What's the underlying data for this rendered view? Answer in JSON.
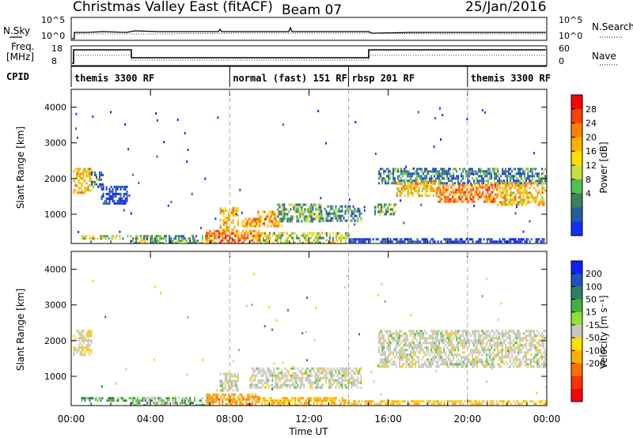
{
  "header": {
    "station": "Christmas Valley East (fitACF)",
    "beam": "Beam 07",
    "date": "25/Jan/2016"
  },
  "left_labels": {
    "nsky": "N.Sky",
    "freq_line1": "Freq.",
    "freq_line2": "[MHz]",
    "cpid": "CPID"
  },
  "right_labels": {
    "nsearch": "N.Search",
    "nave": "Nave"
  },
  "noise_panel": {
    "left_ticks": [
      "10^5",
      "10^0"
    ],
    "right_ticks": [
      "10^5",
      "10^0"
    ]
  },
  "freq_panel": {
    "left_ticks": [
      "18",
      "8"
    ],
    "right_ticks": [
      "60",
      "0"
    ]
  },
  "cpid_segments": [
    {
      "label": "themis 3300 RF",
      "start_hour": 0
    },
    {
      "label": "normal (fast) 151 RF",
      "start_hour": 8
    },
    {
      "label": "rbsp 201 RF",
      "start_hour": 14
    },
    {
      "label": "themis 3300 RF",
      "start_hour": 20
    }
  ],
  "colorbars": {
    "power": {
      "label": "Power [dB]",
      "ticks": [
        "28",
        "24",
        "20",
        "16",
        "12",
        "8",
        "4"
      ],
      "colors": [
        "#ff0000",
        "#ff4000",
        "#ff8000",
        "#ffb000",
        "#ffe000",
        "#c8e040",
        "#50c050",
        "#408060",
        "#2060a0",
        "#1030ff"
      ]
    },
    "velocity": {
      "label": "Velocity [m s⁻¹]",
      "ticks": [
        "200",
        "100",
        "50",
        "15",
        "-15",
        "-50",
        "-100",
        "-200"
      ],
      "colors": [
        "#1020ff",
        "#2050c0",
        "#308060",
        "#40b040",
        "#90e030",
        "#c8c8c0",
        "#ffe000",
        "#ffb000",
        "#ff7000",
        "#ff3000",
        "#ff0000"
      ]
    }
  },
  "chart_data": {
    "type": "heatmap",
    "xlabel": "Time UT",
    "ylabel": "Slant Range [km]",
    "x_tick_labels": [
      "00:00",
      "04:00",
      "08:00",
      "12:00",
      "16:00",
      "20:00",
      "00:00"
    ],
    "x_ticks_hours": [
      0,
      4,
      8,
      12,
      16,
      20,
      24
    ],
    "xlim_hours": [
      0,
      24
    ],
    "ylim_km": [
      180,
      4500
    ],
    "y_ticks": [
      1000,
      2000,
      3000,
      4000
    ],
    "y_tick_labels": [
      "1000",
      "2000",
      "3000",
      "4000"
    ],
    "power_regions": [
      {
        "t0": 0.1,
        "t1": 1.0,
        "r0": 1600,
        "r1": 2300,
        "level": 20
      },
      {
        "t0": 1.0,
        "t1": 1.6,
        "r0": 1800,
        "r1": 2200,
        "level": 12
      },
      {
        "t0": 1.5,
        "t1": 2.8,
        "r0": 1300,
        "r1": 1800,
        "level": 8
      },
      {
        "t0": 0.5,
        "t1": 3.0,
        "r0": 300,
        "r1": 420,
        "level": 16
      },
      {
        "t0": 3.0,
        "t1": 7.0,
        "r0": 220,
        "r1": 420,
        "level": 14
      },
      {
        "t0": 6.8,
        "t1": 9.5,
        "r0": 220,
        "r1": 560,
        "level": 24
      },
      {
        "t0": 7.5,
        "t1": 8.4,
        "r0": 600,
        "r1": 1200,
        "level": 20
      },
      {
        "t0": 8.6,
        "t1": 9.4,
        "r0": 650,
        "r1": 900,
        "level": 22
      },
      {
        "t0": 9.4,
        "t1": 10.6,
        "r0": 700,
        "r1": 1100,
        "level": 22
      },
      {
        "t0": 10.4,
        "t1": 12.6,
        "r0": 800,
        "r1": 1300,
        "level": 14
      },
      {
        "t0": 12.6,
        "t1": 14.6,
        "r0": 850,
        "r1": 1250,
        "level": 12
      },
      {
        "t0": 9.5,
        "t1": 14.0,
        "r0": 220,
        "r1": 500,
        "level": 16
      },
      {
        "t0": 14.0,
        "t1": 24.0,
        "r0": 220,
        "r1": 330,
        "level": 8
      },
      {
        "t0": 15.3,
        "t1": 16.4,
        "r0": 1000,
        "r1": 1300,
        "level": 14
      },
      {
        "t0": 15.5,
        "t1": 24.0,
        "r0": 1900,
        "r1": 2300,
        "level": 12
      },
      {
        "t0": 16.4,
        "t1": 18.5,
        "r0": 1500,
        "r1": 1950,
        "level": 20
      },
      {
        "t0": 18.5,
        "t1": 21.5,
        "r0": 1350,
        "r1": 1850,
        "level": 24
      },
      {
        "t0": 21.5,
        "t1": 24.0,
        "r0": 1300,
        "r1": 1900,
        "level": 20
      }
    ],
    "velocity_regions": [
      {
        "t0": 0.1,
        "t1": 1.0,
        "r0": 1600,
        "r1": 2300,
        "level": -10
      },
      {
        "t0": 0.5,
        "t1": 3.0,
        "r0": 300,
        "r1": 420,
        "level": 30
      },
      {
        "t0": 3.0,
        "t1": 7.0,
        "r0": 220,
        "r1": 420,
        "level": 20
      },
      {
        "t0": 6.8,
        "t1": 9.5,
        "r0": 220,
        "r1": 520,
        "level": -60
      },
      {
        "t0": 7.5,
        "t1": 8.4,
        "r0": 600,
        "r1": 1100,
        "level": 0
      },
      {
        "t0": 9.0,
        "t1": 14.6,
        "r0": 700,
        "r1": 1250,
        "level": 0
      },
      {
        "t0": 9.5,
        "t1": 14.0,
        "r0": 220,
        "r1": 420,
        "level": -40
      },
      {
        "t0": 14.0,
        "t1": 24.0,
        "r0": 220,
        "r1": 330,
        "level": -30
      },
      {
        "t0": 15.5,
        "t1": 24.0,
        "r0": 1300,
        "r1": 2300,
        "level": 0
      }
    ]
  }
}
